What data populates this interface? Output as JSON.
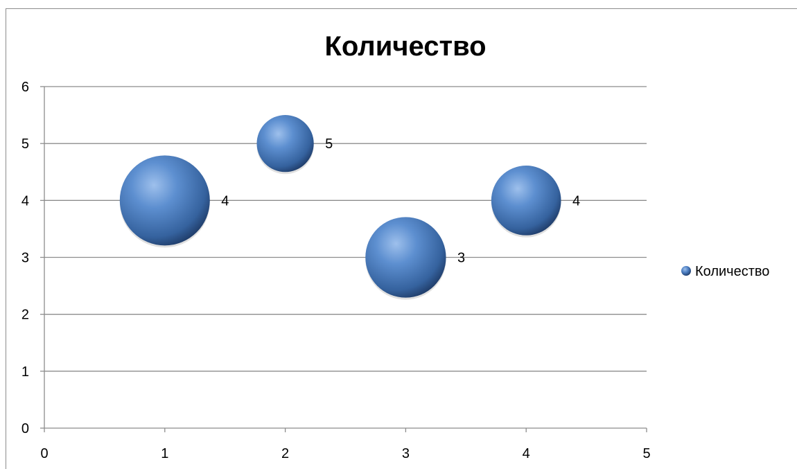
{
  "chart_data": {
    "type": "bubble",
    "title": "Количество",
    "xlabel": "",
    "ylabel": "",
    "xlim": [
      0,
      5
    ],
    "ylim": [
      0,
      6
    ],
    "x_ticks": [
      "0",
      "1",
      "2",
      "3",
      "4",
      "5"
    ],
    "y_ticks": [
      "0",
      "1",
      "2",
      "3",
      "4",
      "5",
      "6"
    ],
    "grid": "horizontal",
    "legend_position": "right",
    "series": [
      {
        "name": "Количество",
        "color": "#4f81bd",
        "points": [
          {
            "x": 1,
            "y": 4,
            "size": 4,
            "label": "4"
          },
          {
            "x": 2,
            "y": 5,
            "size": 1.6,
            "label": "5"
          },
          {
            "x": 3,
            "y": 3,
            "size": 3.2,
            "label": "3"
          },
          {
            "x": 4,
            "y": 4,
            "size": 2.4,
            "label": "4"
          }
        ]
      }
    ]
  }
}
